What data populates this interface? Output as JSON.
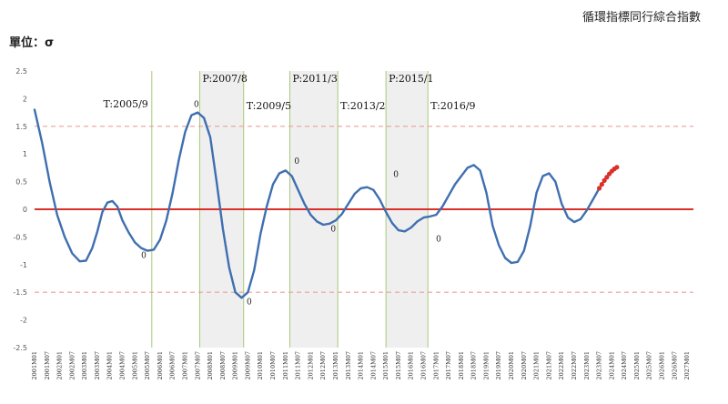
{
  "title": "循環指標同行綜合指數",
  "unit_label": "單位：σ",
  "chart_data": {
    "type": "line",
    "title": "循環指標同行綜合指數",
    "ylabel": "單位：σ",
    "ylim": [
      -2.5,
      2.5
    ],
    "yticks": [
      2.5,
      2,
      1.5,
      1,
      0.5,
      0,
      -0.5,
      -1,
      -1.5,
      -2,
      -2.5
    ],
    "x_range": [
      2001.0,
      2027.25
    ],
    "x_tick_labels": [
      "2001M01",
      "2001M07",
      "2002M01",
      "2002M07",
      "2003M01",
      "2003M07",
      "2004M01",
      "2004M07",
      "2005M01",
      "2005M07",
      "2006M01",
      "2006M07",
      "2007M01",
      "2007M07",
      "2008M01",
      "2008M07",
      "2009M01",
      "2009M07",
      "2010M01",
      "2010M07",
      "2011M01",
      "2011M07",
      "2012M01",
      "2012M07",
      "2013M01",
      "2013M07",
      "2014M01",
      "2014M07",
      "2015M01",
      "2015M07",
      "2016M01",
      "2016M07",
      "2017M01",
      "2017M07",
      "2018M01",
      "2018M07",
      "2019M01",
      "2019M07",
      "2020M01",
      "2020M07",
      "2021M01",
      "2021M07",
      "2022M01",
      "2022M07",
      "2023M01",
      "2023M07",
      "2024M01",
      "2024M07",
      "2025M01",
      "2025M07",
      "2026M01",
      "2026M07",
      "2027M01"
    ],
    "reference_lines": [
      {
        "value": 1.5,
        "style": "dashed",
        "color": "#e8a0a0"
      },
      {
        "value": 0,
        "style": "solid",
        "color": "#d9302a"
      },
      {
        "value": -1.5,
        "style": "dashed",
        "color": "#e8a0a0"
      }
    ],
    "shaded_periods": [
      {
        "start": 2007.58,
        "end": 2009.33
      },
      {
        "start": 2011.17,
        "end": 2013.08
      },
      {
        "start": 2015.0,
        "end": 2016.67
      }
    ],
    "turning_points": [
      {
        "x": 2005.67,
        "label": "T:2005/9"
      },
      {
        "x": 2007.58,
        "label": "P:2007/8"
      },
      {
        "x": 2009.33,
        "label": "T:2009/5"
      },
      {
        "x": 2011.17,
        "label": "P:2011/3"
      },
      {
        "x": 2013.08,
        "label": "T:2013/2"
      },
      {
        "x": 2015.0,
        "label": "P:2015/1"
      },
      {
        "x": 2016.67,
        "label": "T:2016/9"
      }
    ],
    "zero_markers": [
      {
        "x": 2005.35,
        "y": -0.88,
        "label": "0"
      },
      {
        "x": 2007.45,
        "y": 1.85,
        "label": "0"
      },
      {
        "x": 2009.55,
        "y": -1.72,
        "label": "0"
      },
      {
        "x": 2011.45,
        "y": 0.82,
        "label": "0"
      },
      {
        "x": 2012.9,
        "y": -0.4,
        "label": "0"
      },
      {
        "x": 2015.4,
        "y": 0.58,
        "label": "0"
      },
      {
        "x": 2017.1,
        "y": -0.58,
        "label": "0"
      }
    ],
    "series": [
      {
        "color": "#3f6fb0",
        "points": [
          [
            2001.0,
            1.8
          ],
          [
            2001.3,
            1.2
          ],
          [
            2001.6,
            0.5
          ],
          [
            2001.9,
            -0.1
          ],
          [
            2002.2,
            -0.5
          ],
          [
            2002.5,
            -0.8
          ],
          [
            2002.8,
            -0.94
          ],
          [
            2003.05,
            -0.93
          ],
          [
            2003.3,
            -0.7
          ],
          [
            2003.5,
            -0.4
          ],
          [
            2003.7,
            -0.05
          ],
          [
            2003.9,
            0.12
          ],
          [
            2004.1,
            0.15
          ],
          [
            2004.3,
            0.05
          ],
          [
            2004.5,
            -0.2
          ],
          [
            2004.75,
            -0.42
          ],
          [
            2005.0,
            -0.6
          ],
          [
            2005.25,
            -0.7
          ],
          [
            2005.5,
            -0.75
          ],
          [
            2005.75,
            -0.73
          ],
          [
            2006.0,
            -0.55
          ],
          [
            2006.25,
            -0.2
          ],
          [
            2006.5,
            0.3
          ],
          [
            2006.75,
            0.9
          ],
          [
            2007.0,
            1.4
          ],
          [
            2007.25,
            1.7
          ],
          [
            2007.5,
            1.75
          ],
          [
            2007.75,
            1.65
          ],
          [
            2008.0,
            1.3
          ],
          [
            2008.25,
            0.5
          ],
          [
            2008.5,
            -0.35
          ],
          [
            2008.75,
            -1.05
          ],
          [
            2009.0,
            -1.5
          ],
          [
            2009.25,
            -1.6
          ],
          [
            2009.5,
            -1.5
          ],
          [
            2009.75,
            -1.1
          ],
          [
            2010.0,
            -0.45
          ],
          [
            2010.25,
            0.05
          ],
          [
            2010.5,
            0.45
          ],
          [
            2010.75,
            0.65
          ],
          [
            2011.0,
            0.7
          ],
          [
            2011.25,
            0.6
          ],
          [
            2011.5,
            0.35
          ],
          [
            2011.75,
            0.1
          ],
          [
            2012.0,
            -0.1
          ],
          [
            2012.25,
            -0.22
          ],
          [
            2012.5,
            -0.28
          ],
          [
            2012.75,
            -0.26
          ],
          [
            2013.0,
            -0.2
          ],
          [
            2013.25,
            -0.08
          ],
          [
            2013.5,
            0.1
          ],
          [
            2013.75,
            0.28
          ],
          [
            2014.0,
            0.38
          ],
          [
            2014.25,
            0.4
          ],
          [
            2014.5,
            0.35
          ],
          [
            2014.75,
            0.18
          ],
          [
            2015.0,
            -0.05
          ],
          [
            2015.25,
            -0.25
          ],
          [
            2015.5,
            -0.38
          ],
          [
            2015.75,
            -0.4
          ],
          [
            2016.0,
            -0.33
          ],
          [
            2016.25,
            -0.22
          ],
          [
            2016.5,
            -0.15
          ],
          [
            2016.75,
            -0.13
          ],
          [
            2017.0,
            -0.1
          ],
          [
            2017.25,
            0.05
          ],
          [
            2017.5,
            0.25
          ],
          [
            2017.75,
            0.45
          ],
          [
            2018.0,
            0.6
          ],
          [
            2018.25,
            0.75
          ],
          [
            2018.5,
            0.8
          ],
          [
            2018.75,
            0.7
          ],
          [
            2019.0,
            0.3
          ],
          [
            2019.25,
            -0.3
          ],
          [
            2019.5,
            -0.65
          ],
          [
            2019.75,
            -0.88
          ],
          [
            2020.0,
            -0.97
          ],
          [
            2020.25,
            -0.95
          ],
          [
            2020.5,
            -0.75
          ],
          [
            2020.75,
            -0.3
          ],
          [
            2021.0,
            0.3
          ],
          [
            2021.25,
            0.6
          ],
          [
            2021.5,
            0.65
          ],
          [
            2021.75,
            0.5
          ],
          [
            2022.0,
            0.1
          ],
          [
            2022.25,
            -0.15
          ],
          [
            2022.5,
            -0.23
          ],
          [
            2022.75,
            -0.18
          ],
          [
            2023.0,
            -0.02
          ],
          [
            2023.25,
            0.18
          ],
          [
            2023.5,
            0.38
          ]
        ]
      },
      {
        "color": "#d9302a",
        "marker": "dot",
        "points": [
          [
            2023.5,
            0.38
          ],
          [
            2023.6,
            0.45
          ],
          [
            2023.7,
            0.52
          ],
          [
            2023.8,
            0.58
          ],
          [
            2023.9,
            0.64
          ],
          [
            2024.0,
            0.69
          ],
          [
            2024.1,
            0.73
          ],
          [
            2024.2,
            0.76
          ]
        ]
      }
    ]
  }
}
